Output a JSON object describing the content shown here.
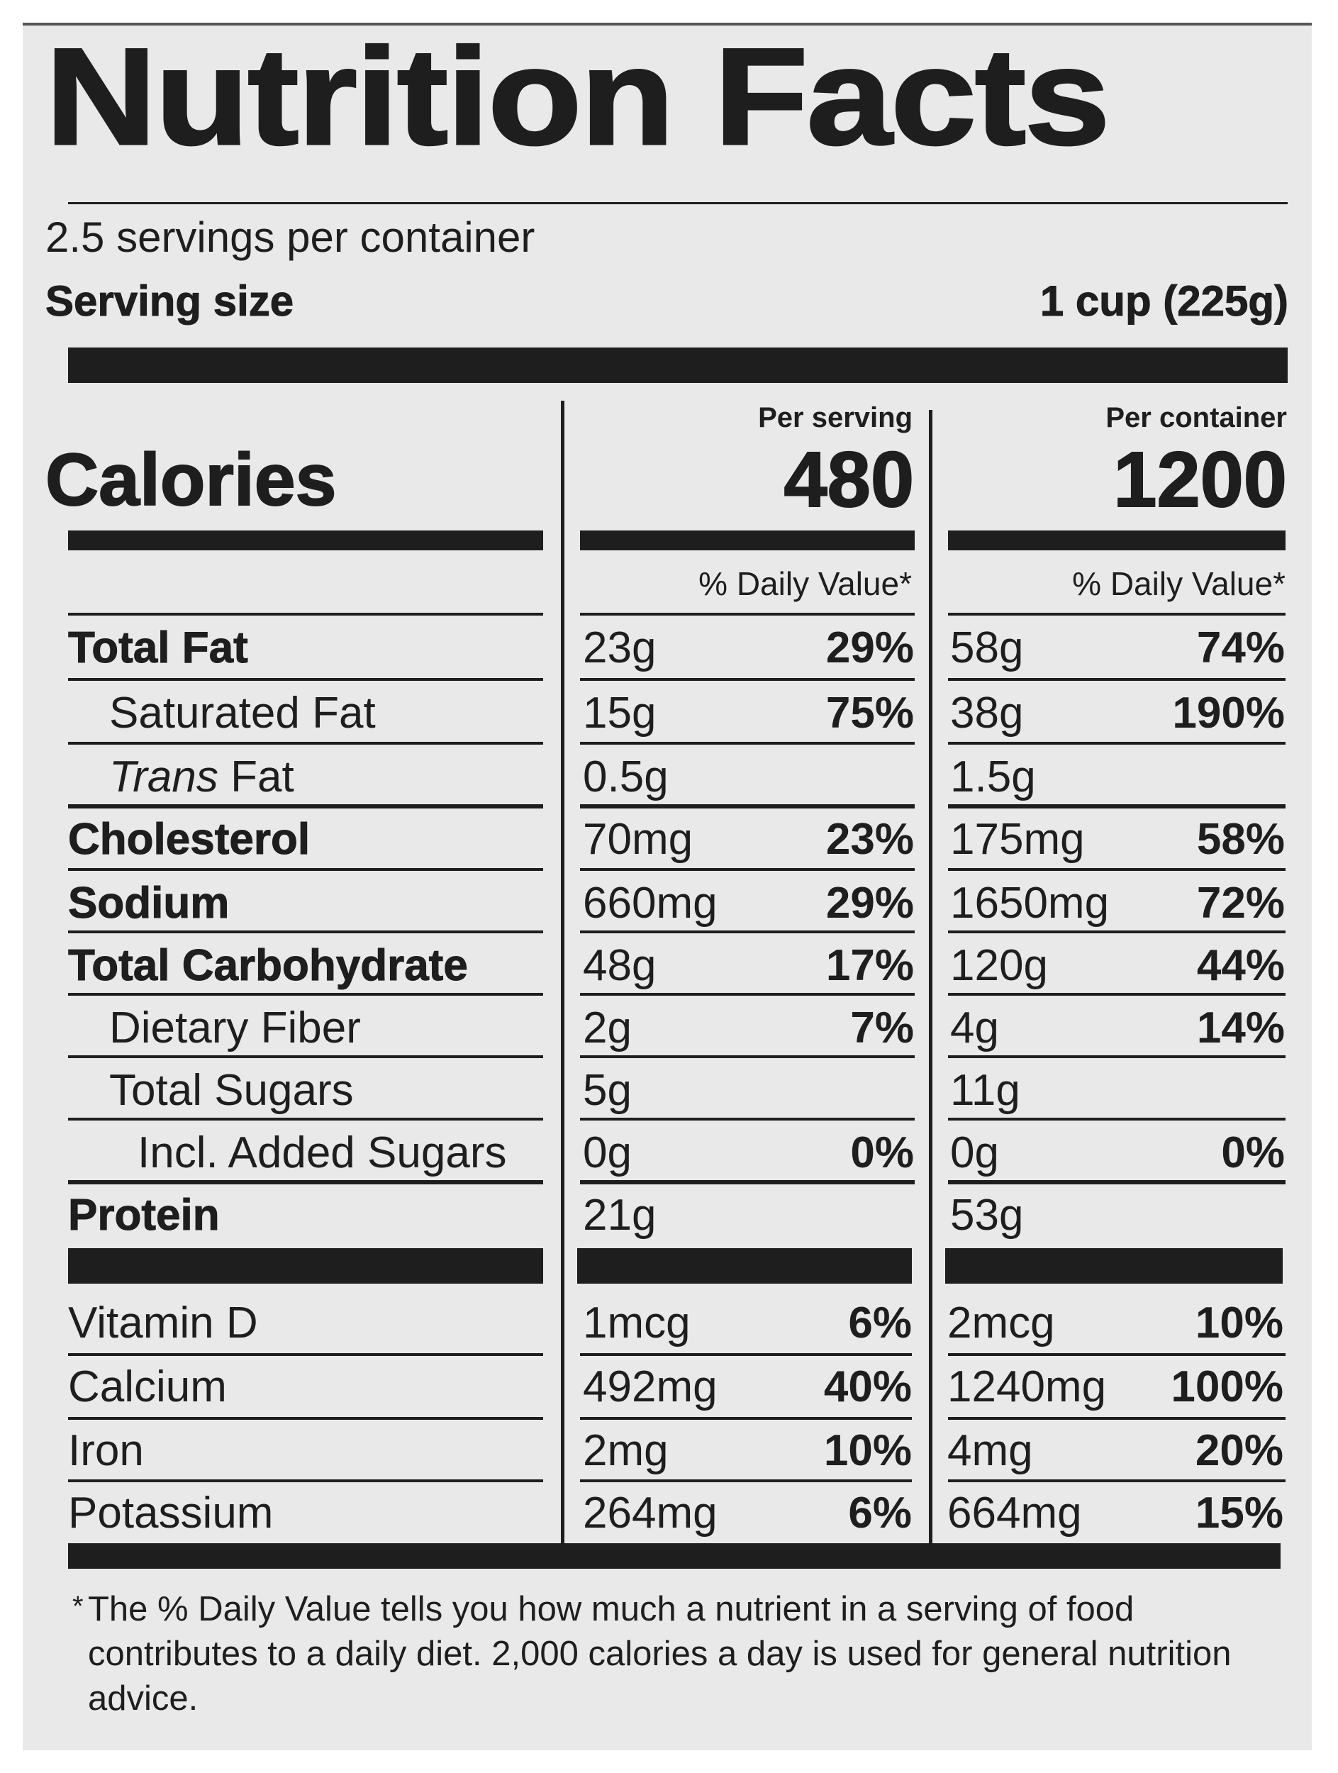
{
  "label": {
    "title": "Nutrition Facts",
    "servings_per_container": "2.5 servings per container",
    "serving_size_label": "Serving size",
    "serving_size_value": "1 cup (225g)",
    "per_serving_heading": "Per serving",
    "per_container_heading": "Per container",
    "calories_label": "Calories",
    "calories_per_serving": "480",
    "calories_per_container": "1200",
    "dv_heading": "% Daily Value*"
  },
  "nutrients": [
    {
      "label": "Total Fat",
      "serving_amount": "23g",
      "serving_dv": "29%",
      "container_amount": "58g",
      "container_dv": "74%"
    },
    {
      "label": "Saturated Fat",
      "serving_amount": "15g",
      "serving_dv": "75%",
      "container_amount": "38g",
      "container_dv": "190%"
    },
    {
      "label_prefix": "Trans",
      "label": "Fat",
      "serving_amount": "0.5g",
      "serving_dv": "",
      "container_amount": "1.5g",
      "container_dv": ""
    },
    {
      "label": "Cholesterol",
      "serving_amount": "70mg",
      "serving_dv": "23%",
      "container_amount": "175mg",
      "container_dv": "58%"
    },
    {
      "label": "Sodium",
      "serving_amount": "660mg",
      "serving_dv": "29%",
      "container_amount": "1650mg",
      "container_dv": "72%"
    },
    {
      "label": "Total Carbohydrate",
      "serving_amount": "48g",
      "serving_dv": "17%",
      "container_amount": "120g",
      "container_dv": "44%"
    },
    {
      "label": "Dietary Fiber",
      "serving_amount": "2g",
      "serving_dv": "7%",
      "container_amount": "4g",
      "container_dv": "14%"
    },
    {
      "label": "Total Sugars",
      "serving_amount": "5g",
      "serving_dv": "",
      "container_amount": "11g",
      "container_dv": ""
    },
    {
      "label": "Incl. Added Sugars",
      "serving_amount": "0g",
      "serving_dv": "0%",
      "container_amount": "0g",
      "container_dv": "0%"
    },
    {
      "label": "Protein",
      "serving_amount": "21g",
      "serving_dv": "",
      "container_amount": "53g",
      "container_dv": ""
    }
  ],
  "micronutrients": [
    {
      "label": "Vitamin D",
      "serving_amount": "1mcg",
      "serving_dv": "6%",
      "container_amount": "2mcg",
      "container_dv": "10%"
    },
    {
      "label": "Calcium",
      "serving_amount": "492mg",
      "serving_dv": "40%",
      "container_amount": "1240mg",
      "container_dv": "100%"
    },
    {
      "label": "Iron",
      "serving_amount": "2mg",
      "serving_dv": "10%",
      "container_amount": "4mg",
      "container_dv": "20%"
    },
    {
      "label": "Potassium",
      "serving_amount": "264mg",
      "serving_dv": "6%",
      "container_amount": "664mg",
      "container_dv": "15%"
    }
  ],
  "footnote": {
    "asterisk": "*",
    "text": "The % Daily Value tells you how much a nutrient in a serving of food contributes to a daily diet. 2,000 calories a day is used for general nutrition advice."
  }
}
